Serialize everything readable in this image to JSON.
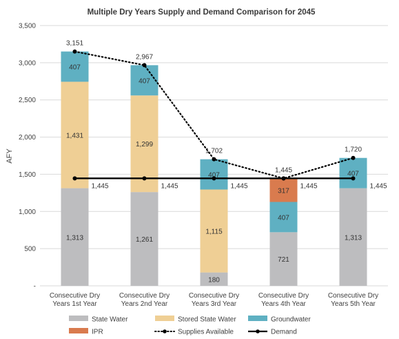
{
  "chart_data": {
    "type": "bar",
    "stacked": true,
    "title": "Multiple Dry Years Supply and Demand Comparison for 2045",
    "ylabel": "AFY",
    "xlabel": "",
    "ylim": [
      0,
      3500
    ],
    "yticks": [
      0,
      500,
      1000,
      1500,
      2000,
      2500,
      3000,
      3500
    ],
    "ytick_labels": [
      "-",
      "500",
      "1,000",
      "1,500",
      "2,000",
      "2,500",
      "3,000",
      "3,500"
    ],
    "grid": true,
    "legend_position": "bottom",
    "categories": [
      [
        "Consecutive Dry",
        "Years 1st Year"
      ],
      [
        "Consecutive Dry",
        "Years 2nd Year"
      ],
      [
        "Consecutive Dry",
        "Years 3rd Year"
      ],
      [
        "Consecutive Dry",
        "Years 4th Year"
      ],
      [
        "Consecutive Dry",
        "Years 5th Year"
      ]
    ],
    "series": [
      {
        "name": "State Water",
        "color": "#bdbdbf",
        "values": [
          1313,
          1261,
          180,
          721,
          1313
        ],
        "labels": [
          "1,313",
          "1,261",
          "180",
          "721",
          "1,313"
        ]
      },
      {
        "name": "Stored State Water",
        "color": "#efcf95",
        "values": [
          1431,
          1299,
          1115,
          0,
          0
        ],
        "labels": [
          "1,431",
          "1,299",
          "1,115",
          "",
          ""
        ]
      },
      {
        "name": "Groundwater",
        "color": "#5fb0c2",
        "values": [
          407,
          407,
          407,
          407,
          407
        ],
        "labels": [
          "407",
          "407",
          "407",
          "407",
          "407"
        ]
      },
      {
        "name": "IPR",
        "color": "#d97b4e",
        "values": [
          0,
          0,
          0,
          317,
          0
        ],
        "labels": [
          "",
          "",
          "",
          "317",
          ""
        ]
      }
    ],
    "lines": [
      {
        "name": "Supplies Available",
        "style": "dotted",
        "color": "#000000",
        "values": [
          3151,
          2967,
          1702,
          1445,
          1720
        ],
        "labels": [
          "3,151",
          "2,967",
          "1,702",
          "1,445",
          "1,720"
        ]
      },
      {
        "name": "Demand",
        "style": "solid",
        "color": "#000000",
        "values": [
          1445,
          1445,
          1445,
          1445,
          1445
        ],
        "labels": [
          "1,445",
          "1,445",
          "1,445",
          "1,445",
          "1,445"
        ]
      }
    ],
    "legend": [
      {
        "name": "State Water",
        "kind": "box",
        "color": "#bdbdbf"
      },
      {
        "name": "Stored State Water",
        "kind": "box",
        "color": "#efcf95"
      },
      {
        "name": "Groundwater",
        "kind": "box",
        "color": "#5fb0c2"
      },
      {
        "name": "IPR",
        "kind": "box",
        "color": "#d97b4e"
      },
      {
        "name": "Supplies Available",
        "kind": "dotted-line"
      },
      {
        "name": "Demand",
        "kind": "solid-line"
      }
    ]
  }
}
